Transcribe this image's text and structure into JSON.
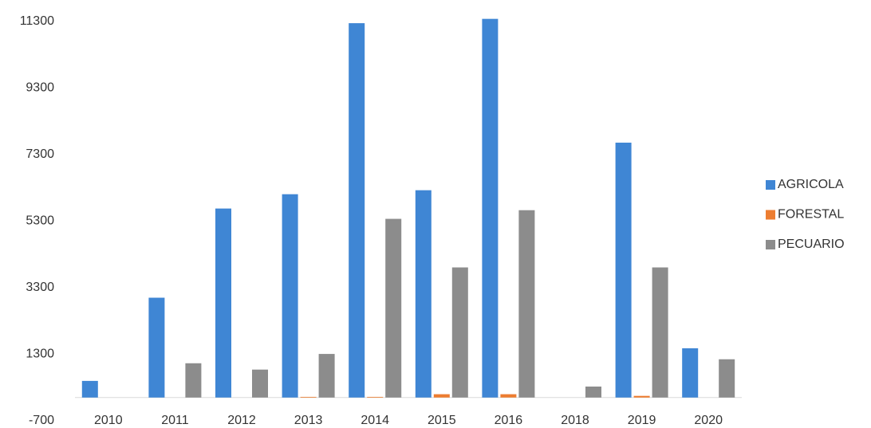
{
  "chart_data": {
    "type": "bar",
    "categories": [
      "2010",
      "2011",
      "2012",
      "2013",
      "2014",
      "2015",
      "2016",
      "2018",
      "2019",
      "2020"
    ],
    "series": [
      {
        "name": "AGRICOLA",
        "color": "#3f86d4",
        "values": [
          500,
          3000,
          5680,
          6110,
          11250,
          6230,
          11380,
          0,
          7660,
          1480
        ]
      },
      {
        "name": "FORESTAL",
        "color": "#ed7d31",
        "values": [
          0,
          0,
          0,
          20,
          20,
          100,
          100,
          0,
          50,
          0
        ]
      },
      {
        "name": "PECUARIO",
        "color": "#8c8c8c",
        "values": [
          0,
          1030,
          840,
          1310,
          5370,
          3910,
          5630,
          330,
          3910,
          1150
        ]
      }
    ],
    "ylim": [
      -700,
      11300
    ],
    "yticks": [
      -700,
      1300,
      3300,
      5300,
      7300,
      9300,
      11300
    ],
    "grid": false,
    "legend": "right"
  }
}
